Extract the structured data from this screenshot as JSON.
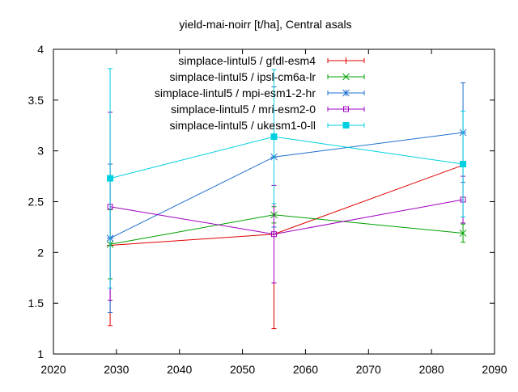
{
  "chart_data": {
    "type": "line",
    "title": "yield-mai-noirr [t/ha], Central asals",
    "xlabel": "",
    "ylabel": "",
    "xlim": [
      2020,
      2090
    ],
    "ylim": [
      1,
      4
    ],
    "xticks": [
      2020,
      2030,
      2040,
      2050,
      2060,
      2070,
      2080,
      2090
    ],
    "yticks": [
      1,
      1.5,
      2,
      2.5,
      3,
      3.5,
      4
    ],
    "x": [
      2029,
      2055,
      2085
    ],
    "grid": false,
    "legend_position": "top-right",
    "error_bars": true,
    "series": [
      {
        "name": "simplace-lintul5 / gfdl-esm4",
        "color": "#e00000",
        "marker": "plus",
        "values": [
          2.07,
          2.18,
          2.86
        ],
        "err_low": [
          1.28,
          1.25,
          2.86
        ],
        "err_high": [
          2.87,
          3.12,
          2.86
        ]
      },
      {
        "name": "simplace-lintul5 / ipsl-cm6a-lr",
        "color": "#00a000",
        "marker": "cross",
        "values": [
          2.08,
          2.37,
          2.19
        ],
        "err_low": [
          1.74,
          2.29,
          2.1
        ],
        "err_high": [
          2.42,
          2.45,
          2.28
        ]
      },
      {
        "name": "simplace-lintul5 / mpi-esm1-2-hr",
        "color": "#1f6fcf",
        "marker": "star",
        "values": [
          2.14,
          2.94,
          3.18
        ],
        "err_low": [
          1.41,
          2.25,
          2.69
        ],
        "err_high": [
          2.87,
          3.63,
          3.67
        ]
      },
      {
        "name": "simplace-lintul5 / mri-esm2-0",
        "color": "#a000c0",
        "marker": "square",
        "values": [
          2.45,
          2.18,
          2.52
        ],
        "err_low": [
          1.53,
          1.7,
          2.29
        ],
        "err_high": [
          3.38,
          2.66,
          2.75
        ]
      },
      {
        "name": "simplace-lintul5 / ukesm1-0-ll",
        "color": "#00d0e0",
        "marker": "filled-square",
        "values": [
          2.73,
          3.14,
          2.87
        ],
        "err_low": [
          1.65,
          2.48,
          2.35
        ],
        "err_high": [
          3.81,
          3.8,
          3.39
        ]
      }
    ]
  }
}
